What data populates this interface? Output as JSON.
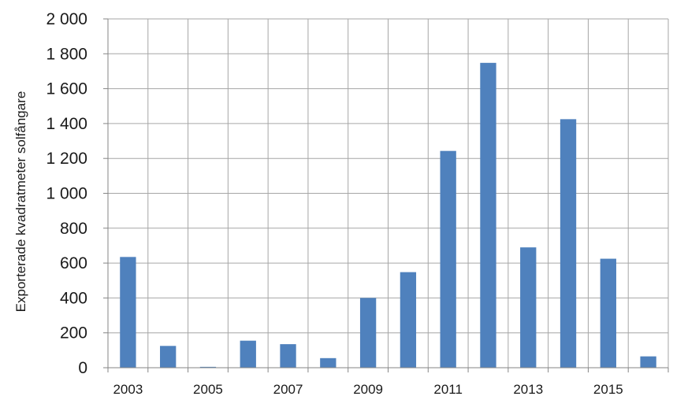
{
  "chart_data": {
    "type": "bar",
    "categories": [
      "2003",
      "2004",
      "2005",
      "2006",
      "2007",
      "2008",
      "2009",
      "2010",
      "2011",
      "2012",
      "2013",
      "2014",
      "2015",
      "2016"
    ],
    "x_tick_labels": [
      "2003",
      "2005",
      "2007",
      "2009",
      "2011",
      "2013",
      "2015"
    ],
    "values": [
      635,
      125,
      5,
      155,
      135,
      55,
      400,
      548,
      1243,
      1748,
      690,
      1425,
      625,
      65
    ],
    "y_tick_labels": [
      "0",
      "200",
      "400",
      "600",
      "800",
      "1 000",
      "1 200",
      "1 400",
      "1 600",
      "1 800",
      "2 000"
    ],
    "ylabel": "Exporterade kvadratmeter solfångare",
    "xlabel": "",
    "title": "",
    "ylim": [
      0,
      2000
    ],
    "grid": true,
    "bar_color": "#4f81bd",
    "grid_color": "#a6a6a6",
    "axis_color": "#868686"
  }
}
